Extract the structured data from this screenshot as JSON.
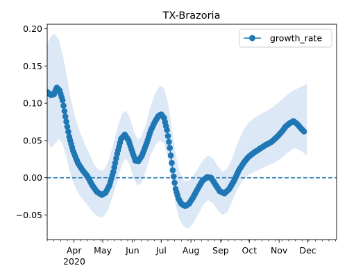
{
  "chart_data": {
    "type": "line",
    "title": "TX-Brazoria",
    "xlabel": "",
    "ylabel": "",
    "x_range": [
      "2020-03-04",
      "2020-12-31"
    ],
    "ylim": [
      -0.083,
      0.206
    ],
    "y_ticks": [
      -0.05,
      0.0,
      0.05,
      0.1,
      0.15,
      0.2
    ],
    "y_tick_labels": [
      "−0.05",
      "0.00",
      "0.05",
      "0.10",
      "0.15",
      "0.20"
    ],
    "x_ticks": [
      {
        "date": "2020-04-01",
        "label": "Apr"
      },
      {
        "date": "2020-05-01",
        "label": "May"
      },
      {
        "date": "2020-06-01",
        "label": "Jun"
      },
      {
        "date": "2020-07-01",
        "label": "Jul"
      },
      {
        "date": "2020-08-01",
        "label": "Aug"
      },
      {
        "date": "2020-09-01",
        "label": "Sep"
      },
      {
        "date": "2020-10-01",
        "label": "Oct"
      },
      {
        "date": "2020-11-01",
        "label": "Nov"
      },
      {
        "date": "2020-12-01",
        "label": "Dec"
      }
    ],
    "x_year_label": "2020",
    "grid": false,
    "legend": {
      "position": "top-right",
      "entries": [
        "growth_rate"
      ]
    },
    "reference_line": {
      "y": 0,
      "style": "dashed"
    },
    "colors": {
      "line": "#1f77b4",
      "band": "#dce8f5"
    },
    "series": [
      {
        "name": "growth_rate",
        "points": [
          [
            "2020-03-04",
            0.115
          ],
          [
            "2020-03-08",
            0.111
          ],
          [
            "2020-03-11",
            0.112
          ],
          [
            "2020-03-14",
            0.121
          ],
          [
            "2020-03-17",
            0.117
          ],
          [
            "2020-03-20",
            0.104
          ],
          [
            "2020-03-23",
            0.082
          ],
          [
            "2020-03-27",
            0.055
          ],
          [
            "2020-03-31",
            0.036
          ],
          [
            "2020-04-05",
            0.02
          ],
          [
            "2020-04-10",
            0.01
          ],
          [
            "2020-04-15",
            0.002
          ],
          [
            "2020-04-20",
            -0.01
          ],
          [
            "2020-04-25",
            -0.019
          ],
          [
            "2020-04-30",
            -0.023
          ],
          [
            "2020-05-04",
            -0.02
          ],
          [
            "2020-05-08",
            -0.01
          ],
          [
            "2020-05-12",
            0.008
          ],
          [
            "2020-05-16",
            0.032
          ],
          [
            "2020-05-20",
            0.052
          ],
          [
            "2020-05-24",
            0.058
          ],
          [
            "2020-05-28",
            0.05
          ],
          [
            "2020-06-01",
            0.034
          ],
          [
            "2020-06-04",
            0.023
          ],
          [
            "2020-06-07",
            0.022
          ],
          [
            "2020-06-11",
            0.03
          ],
          [
            "2020-06-16",
            0.047
          ],
          [
            "2020-06-20",
            0.063
          ],
          [
            "2020-06-24",
            0.074
          ],
          [
            "2020-06-28",
            0.083
          ],
          [
            "2020-07-01",
            0.085
          ],
          [
            "2020-07-04",
            0.08
          ],
          [
            "2020-07-07",
            0.064
          ],
          [
            "2020-07-10",
            0.04
          ],
          [
            "2020-07-13",
            0.01
          ],
          [
            "2020-07-16",
            -0.015
          ],
          [
            "2020-07-19",
            -0.028
          ],
          [
            "2020-07-22",
            -0.035
          ],
          [
            "2020-07-26",
            -0.038
          ],
          [
            "2020-07-30",
            -0.035
          ],
          [
            "2020-08-03",
            -0.027
          ],
          [
            "2020-08-08",
            -0.015
          ],
          [
            "2020-08-13",
            -0.004
          ],
          [
            "2020-08-18",
            0.001
          ],
          [
            "2020-08-22",
            0.0
          ],
          [
            "2020-08-26",
            -0.008
          ],
          [
            "2020-08-31",
            -0.018
          ],
          [
            "2020-09-05",
            -0.021
          ],
          [
            "2020-09-10",
            -0.015
          ],
          [
            "2020-09-15",
            -0.004
          ],
          [
            "2020-09-20",
            0.01
          ],
          [
            "2020-09-25",
            0.02
          ],
          [
            "2020-09-30",
            0.028
          ],
          [
            "2020-10-06",
            0.034
          ],
          [
            "2020-10-12",
            0.039
          ],
          [
            "2020-10-18",
            0.044
          ],
          [
            "2020-10-24",
            0.048
          ],
          [
            "2020-10-30",
            0.055
          ],
          [
            "2020-11-04",
            0.062
          ],
          [
            "2020-11-08",
            0.069
          ],
          [
            "2020-11-12",
            0.073
          ],
          [
            "2020-11-16",
            0.076
          ],
          [
            "2020-11-20",
            0.072
          ],
          [
            "2020-11-24",
            0.066
          ],
          [
            "2020-11-27",
            0.062
          ]
        ],
        "band_upper": [
          [
            "2020-03-04",
            0.18
          ],
          [
            "2020-03-08",
            0.19
          ],
          [
            "2020-03-12",
            0.193
          ],
          [
            "2020-03-16",
            0.186
          ],
          [
            "2020-03-20",
            0.166
          ],
          [
            "2020-03-24",
            0.14
          ],
          [
            "2020-03-28",
            0.11
          ],
          [
            "2020-04-02",
            0.082
          ],
          [
            "2020-04-07",
            0.062
          ],
          [
            "2020-04-12",
            0.046
          ],
          [
            "2020-04-17",
            0.032
          ],
          [
            "2020-04-22",
            0.018
          ],
          [
            "2020-04-27",
            0.01
          ],
          [
            "2020-05-02",
            0.01
          ],
          [
            "2020-05-07",
            0.022
          ],
          [
            "2020-05-12",
            0.046
          ],
          [
            "2020-05-17",
            0.07
          ],
          [
            "2020-05-21",
            0.086
          ],
          [
            "2020-05-25",
            0.09
          ],
          [
            "2020-05-29",
            0.082
          ],
          [
            "2020-06-02",
            0.064
          ],
          [
            "2020-06-06",
            0.052
          ],
          [
            "2020-06-10",
            0.054
          ],
          [
            "2020-06-15",
            0.072
          ],
          [
            "2020-06-20",
            0.096
          ],
          [
            "2020-06-25",
            0.114
          ],
          [
            "2020-06-30",
            0.124
          ],
          [
            "2020-07-04",
            0.12
          ],
          [
            "2020-07-08",
            0.1
          ],
          [
            "2020-07-12",
            0.068
          ],
          [
            "2020-07-16",
            0.032
          ],
          [
            "2020-07-20",
            0.008
          ],
          [
            "2020-07-25",
            -0.004
          ],
          [
            "2020-07-30",
            -0.004
          ],
          [
            "2020-08-04",
            0.004
          ],
          [
            "2020-08-09",
            0.014
          ],
          [
            "2020-08-14",
            0.024
          ],
          [
            "2020-08-19",
            0.03
          ],
          [
            "2020-08-24",
            0.026
          ],
          [
            "2020-08-29",
            0.016
          ],
          [
            "2020-09-03",
            0.008
          ],
          [
            "2020-09-08",
            0.012
          ],
          [
            "2020-09-13",
            0.026
          ],
          [
            "2020-09-18",
            0.044
          ],
          [
            "2020-09-24",
            0.062
          ],
          [
            "2020-09-30",
            0.074
          ],
          [
            "2020-10-06",
            0.08
          ],
          [
            "2020-10-13",
            0.086
          ],
          [
            "2020-10-20",
            0.09
          ],
          [
            "2020-10-27",
            0.096
          ],
          [
            "2020-11-03",
            0.104
          ],
          [
            "2020-11-10",
            0.112
          ],
          [
            "2020-11-17",
            0.118
          ],
          [
            "2020-11-24",
            0.122
          ],
          [
            "2020-11-30",
            0.126
          ]
        ],
        "band_lower": [
          [
            "2020-03-04",
            0.05
          ],
          [
            "2020-03-08",
            0.04
          ],
          [
            "2020-03-12",
            0.045
          ],
          [
            "2020-03-16",
            0.052
          ],
          [
            "2020-03-20",
            0.046
          ],
          [
            "2020-03-24",
            0.028
          ],
          [
            "2020-03-28",
            0.006
          ],
          [
            "2020-04-02",
            -0.012
          ],
          [
            "2020-04-07",
            -0.024
          ],
          [
            "2020-04-12",
            -0.032
          ],
          [
            "2020-04-17",
            -0.04
          ],
          [
            "2020-04-22",
            -0.048
          ],
          [
            "2020-04-27",
            -0.053
          ],
          [
            "2020-05-02",
            -0.052
          ],
          [
            "2020-05-07",
            -0.042
          ],
          [
            "2020-05-12",
            -0.022
          ],
          [
            "2020-05-17",
            0.0
          ],
          [
            "2020-05-21",
            0.018
          ],
          [
            "2020-05-25",
            0.026
          ],
          [
            "2020-05-29",
            0.018
          ],
          [
            "2020-06-02",
            0.0
          ],
          [
            "2020-06-06",
            -0.01
          ],
          [
            "2020-06-10",
            -0.008
          ],
          [
            "2020-06-15",
            0.01
          ],
          [
            "2020-06-20",
            0.03
          ],
          [
            "2020-06-25",
            0.044
          ],
          [
            "2020-06-30",
            0.05
          ],
          [
            "2020-07-04",
            0.046
          ],
          [
            "2020-07-08",
            0.026
          ],
          [
            "2020-07-12",
            -0.004
          ],
          [
            "2020-07-16",
            -0.036
          ],
          [
            "2020-07-20",
            -0.056
          ],
          [
            "2020-07-25",
            -0.066
          ],
          [
            "2020-07-30",
            -0.068
          ],
          [
            "2020-08-04",
            -0.06
          ],
          [
            "2020-08-09",
            -0.048
          ],
          [
            "2020-08-14",
            -0.036
          ],
          [
            "2020-08-19",
            -0.03
          ],
          [
            "2020-08-24",
            -0.034
          ],
          [
            "2020-08-29",
            -0.044
          ],
          [
            "2020-09-03",
            -0.05
          ],
          [
            "2020-09-08",
            -0.046
          ],
          [
            "2020-09-13",
            -0.032
          ],
          [
            "2020-09-18",
            -0.016
          ],
          [
            "2020-09-24",
            -0.004
          ],
          [
            "2020-09-30",
            0.004
          ],
          [
            "2020-10-06",
            0.008
          ],
          [
            "2020-10-13",
            0.012
          ],
          [
            "2020-10-20",
            0.016
          ],
          [
            "2020-10-27",
            0.02
          ],
          [
            "2020-11-03",
            0.026
          ],
          [
            "2020-11-10",
            0.034
          ],
          [
            "2020-11-17",
            0.04
          ],
          [
            "2020-11-24",
            0.036
          ],
          [
            "2020-11-30",
            0.03
          ]
        ]
      }
    ]
  }
}
